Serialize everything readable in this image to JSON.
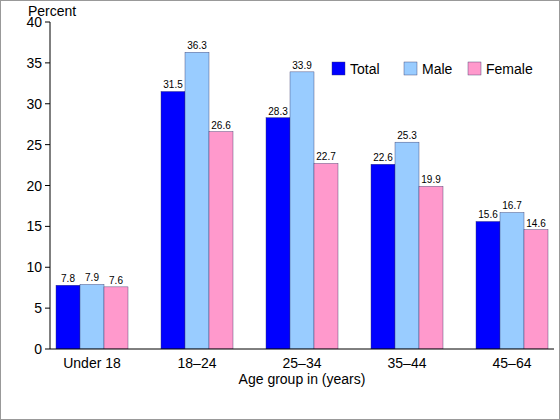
{
  "chart_data": {
    "type": "bar",
    "y_label": "Percent",
    "x_label": "Age group in (years)",
    "categories": [
      "Under 18",
      "18–24",
      "25–34",
      "35–44",
      "45–64"
    ],
    "series": [
      {
        "name": "Total",
        "color": "#0000ff",
        "values": [
          7.8,
          31.5,
          28.3,
          22.6,
          15.6
        ]
      },
      {
        "name": "Male",
        "color": "#99ccff",
        "values": [
          7.9,
          36.3,
          33.9,
          25.3,
          16.7
        ]
      },
      {
        "name": "Female",
        "color": "#ff99cc",
        "values": [
          7.6,
          26.6,
          22.7,
          19.9,
          14.6
        ]
      }
    ],
    "ylim": [
      0,
      40
    ],
    "yticks": [
      0,
      5,
      10,
      15,
      20,
      25,
      30,
      35,
      40
    ],
    "grid": false,
    "legend": "top-right",
    "data_labels": true
  }
}
